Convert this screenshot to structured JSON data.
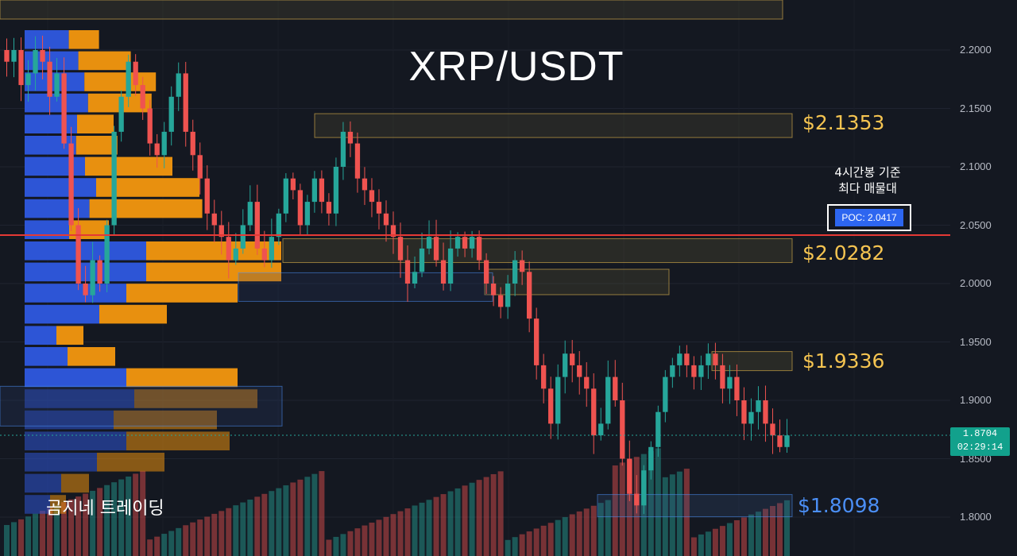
{
  "title": "XRP/USDT",
  "brand": "곰지네 트레이딩",
  "poc": {
    "note_line1": "4시간봉 기준",
    "note_line2": "최다 매물대",
    "label": "POC: 2.0417",
    "value": 2.0417
  },
  "last_price": {
    "value": "1.8704",
    "countdown": "02:29:14"
  },
  "zones": [
    {
      "label": "$2.1353",
      "price": 2.1353,
      "color": "#f5c451"
    },
    {
      "label": "$2.0282",
      "price": 2.0282,
      "color": "#f5c451"
    },
    {
      "label": "$1.9336",
      "price": 1.9336,
      "color": "#f5c451"
    },
    {
      "label": "$1.8098",
      "price": 1.8098,
      "color": "#4b8ff6"
    }
  ],
  "colors": {
    "up": "#26a69a",
    "down": "#ef5350",
    "poc_line": "#e53935",
    "profile_buy": "#2d55d6",
    "profile_sell": "#e8900f",
    "background": "#141821"
  },
  "chart_data": {
    "type": "candlestick",
    "title": "XRP/USDT",
    "ylim": [
      1.79,
      2.22
    ],
    "y_ticks": [
      "2.2000",
      "2.1500",
      "2.1000",
      "2.0500",
      "2.0000",
      "1.9500",
      "1.9000",
      "1.8500",
      "1.8000"
    ],
    "price_levels": [
      2.1353,
      2.0282,
      1.9336,
      1.8098
    ],
    "poc": 2.0417,
    "last_price": 1.8704,
    "series": [
      {
        "name": "close",
        "values": [
          2.19,
          2.2,
          2.17,
          2.18,
          2.2,
          2.19,
          2.16,
          2.18,
          2.12,
          2.05,
          2.0,
          1.99,
          2.02,
          2.0,
          2.05,
          2.13,
          2.16,
          2.19,
          2.17,
          2.15,
          2.12,
          2.11,
          2.13,
          2.16,
          2.18,
          2.13,
          2.11,
          2.09,
          2.06,
          2.05,
          2.04,
          2.02,
          2.03,
          2.05,
          2.07,
          2.03,
          2.02,
          2.04,
          2.06,
          2.09,
          2.08,
          2.05,
          2.07,
          2.09,
          2.07,
          2.06,
          2.1,
          2.13,
          2.12,
          2.09,
          2.08,
          2.07,
          2.06,
          2.05,
          2.04,
          2.02,
          2.0,
          2.01,
          2.03,
          2.04,
          2.02,
          2.0,
          2.03,
          2.04,
          2.03,
          2.04,
          2.02,
          2.0,
          1.99,
          1.98,
          2.0,
          2.02,
          2.01,
          1.97,
          1.93,
          1.91,
          1.88,
          1.92,
          1.94,
          1.93,
          1.92,
          1.91,
          1.87,
          1.88,
          1.92,
          1.9,
          1.85,
          1.82,
          1.81,
          1.84,
          1.86,
          1.89,
          1.92,
          1.93,
          1.94,
          1.93,
          1.92,
          1.93,
          1.94,
          1.93,
          1.91,
          1.92,
          1.9,
          1.88,
          1.89,
          1.9,
          1.88,
          1.87,
          1.86,
          1.87
        ]
      }
    ]
  }
}
